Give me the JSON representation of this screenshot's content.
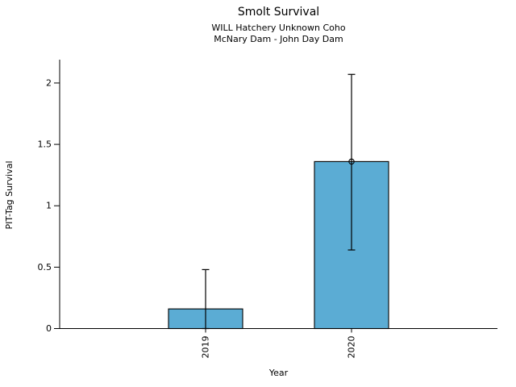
{
  "chart_data": {
    "type": "bar",
    "title": "Smolt Survival",
    "subtitle1": "WILL Hatchery Unknown Coho",
    "subtitle2": "McNary Dam - John Day Dam",
    "xlabel": "Year",
    "ylabel": "PIT-Tag Survival",
    "categories": [
      "2019",
      "2020"
    ],
    "values": [
      0.16,
      1.36
    ],
    "error_low": [
      0.0,
      0.64
    ],
    "error_high": [
      0.48,
      2.07
    ],
    "point_markers": [
      false,
      true
    ],
    "yticks": [
      0,
      0.5,
      1,
      1.5,
      2
    ],
    "ytick_labels": [
      "0",
      "0.5",
      "1",
      "1.5",
      "2"
    ],
    "ylim": [
      0,
      2.19
    ],
    "xtick_rotation": 90,
    "grid": false,
    "legend": false,
    "bar_color": "#5BACD4",
    "bar_edge_color": "#000000",
    "errorbar_color": "#000000",
    "axis_color": "#000000"
  }
}
